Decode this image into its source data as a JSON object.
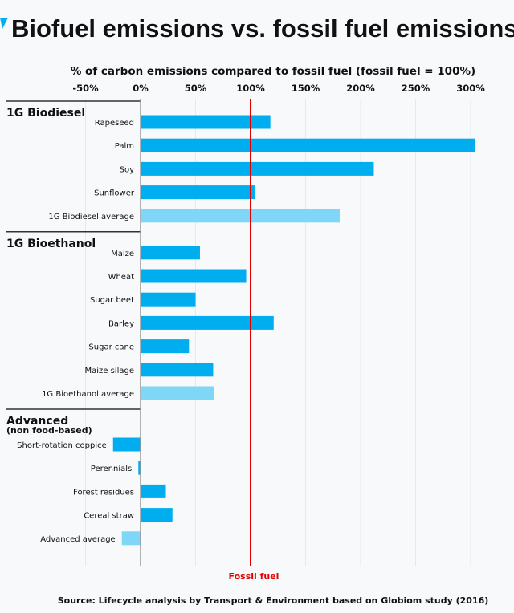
{
  "chart_data": {
    "type": "bar",
    "orientation": "horizontal",
    "title": "Biofuel emissions vs. fossil fuel emissions",
    "xlabel": "% of carbon emissions compared to fossil fuel (fossil fuel = 100%)",
    "xlim": [
      -50,
      310
    ],
    "xticks": [
      -50,
      0,
      50,
      100,
      150,
      200,
      250,
      300
    ],
    "xtick_labels": [
      "-50%",
      "0%",
      "50%",
      "100%",
      "150%",
      "200%",
      "250%",
      "300%"
    ],
    "grid": true,
    "reference_line": {
      "value": 100,
      "label": "Fossil fuel",
      "color": "#e00000"
    },
    "colors": {
      "bar": "#00aeef",
      "average": "#7fd6f7"
    },
    "groups": [
      {
        "name": "1G Biodiesel",
        "subtitle": "",
        "items": [
          {
            "label": "Rapeseed",
            "value": 118,
            "average": false
          },
          {
            "label": "Palm",
            "value": 304,
            "average": false
          },
          {
            "label": "Soy",
            "value": 212,
            "average": false
          },
          {
            "label": "Sunflower",
            "value": 104,
            "average": false
          },
          {
            "label": "1G Biodiesel average",
            "value": 181,
            "average": true
          }
        ]
      },
      {
        "name": "1G Bioethanol",
        "subtitle": "",
        "items": [
          {
            "label": "Maize",
            "value": 54,
            "average": false
          },
          {
            "label": "Wheat",
            "value": 96,
            "average": false
          },
          {
            "label": "Sugar beet",
            "value": 50,
            "average": false
          },
          {
            "label": "Barley",
            "value": 121,
            "average": false
          },
          {
            "label": "Sugar cane",
            "value": 44,
            "average": false
          },
          {
            "label": "Maize silage",
            "value": 66,
            "average": false
          },
          {
            "label": "1G Bioethanol average",
            "value": 67,
            "average": true
          }
        ]
      },
      {
        "name": "Advanced",
        "subtitle": "(non food-based)",
        "items": [
          {
            "label": "Short-rotation coppice",
            "value": -25,
            "average": false
          },
          {
            "label": "Perennials",
            "value": -2,
            "average": false
          },
          {
            "label": "Forest residues",
            "value": 23,
            "average": false
          },
          {
            "label": "Cereal straw",
            "value": 29,
            "average": false
          },
          {
            "label": "Advanced average",
            "value": -17,
            "average": true
          }
        ]
      }
    ],
    "source": "Source: Lifecycle analysis by Transport & Environment based on Globiom study (2016)"
  }
}
